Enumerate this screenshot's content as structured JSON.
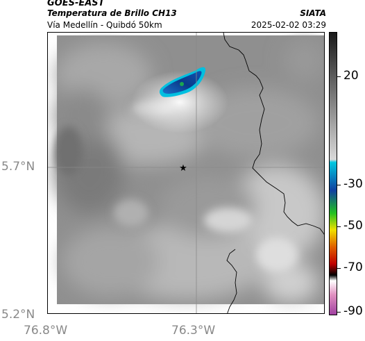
{
  "header": {
    "satellite": "GOES-EAST",
    "product": "Temperatura de Brillo CH13",
    "route": "Vía Medellín - Quibdó 50km",
    "brand": "SIATA",
    "datetime": "2025-02-02 03:29"
  },
  "axes": {
    "y_ticks": [
      "5.7°N",
      "5.2°N"
    ],
    "x_ticks": [
      "76.8°W",
      "76.3°W"
    ]
  },
  "colorbar": {
    "labels": [
      "20",
      "-30",
      "-50",
      "-70",
      "-90"
    ],
    "colors": {
      "warm_dark": "#1a1a1a",
      "warm_light": "#d9d9d9",
      "cyan": "#00c8e0",
      "blue": "#1040a0",
      "green": "#20c020",
      "yellow": "#f0e000",
      "orange": "#e06000",
      "red": "#c00000",
      "black": "#000000",
      "pink": "#e090c0",
      "purple": "#a040a0"
    }
  },
  "map": {
    "marker": "star-marker",
    "cloud_colors": {
      "core": "#0a3a8a",
      "edge": "#00c0e0",
      "halo": "#ffffff"
    }
  }
}
